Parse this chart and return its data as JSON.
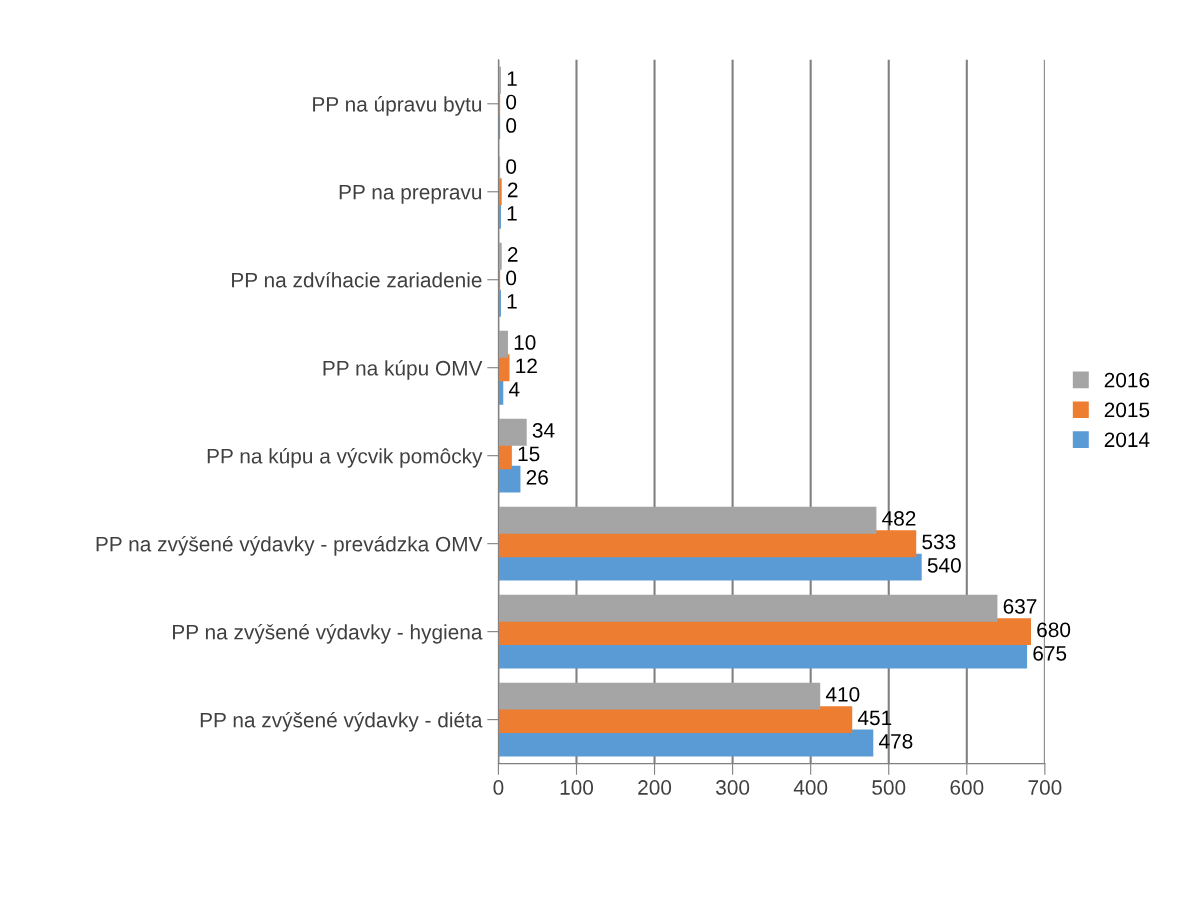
{
  "chart_data": {
    "type": "bar",
    "orientation": "horizontal",
    "categories": [
      "PP na úpravu bytu",
      "PP na prepravu",
      "PP na zdvíhacie zariadenie",
      "PP na kúpu OMV",
      "PP na kúpu a výcvik pomôcky",
      "PP na zvýšené výdavky - prevádzka OMV",
      "PP na zvýšené výdavky - hygiena",
      "PP na zvýšené výdavky - diéta"
    ],
    "series": [
      {
        "name": "2014",
        "color": "#5b9bd5",
        "values": [
          0,
          1,
          1,
          4,
          26,
          540,
          675,
          478
        ]
      },
      {
        "name": "2015",
        "color": "#ed7d31",
        "values": [
          0,
          2,
          0,
          12,
          15,
          533,
          680,
          451
        ]
      },
      {
        "name": "2016",
        "color": "#a5a5a5",
        "values": [
          1,
          0,
          2,
          10,
          34,
          482,
          637,
          410
        ]
      }
    ],
    "xlim": [
      0,
      700
    ],
    "xticks": [
      0,
      100,
      200,
      300,
      400,
      500,
      600,
      700
    ],
    "grid": "x",
    "legend": "right",
    "data_labels": true
  }
}
